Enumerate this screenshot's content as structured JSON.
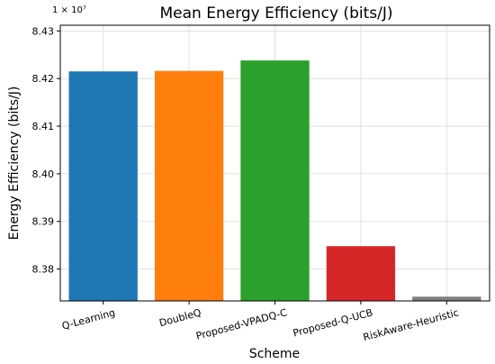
{
  "chart_data": {
    "type": "bar",
    "title": "Mean Energy Efficiency (bits/J)",
    "xlabel": "Scheme",
    "ylabel": "Energy Efficiency (bits/J)",
    "y_offset_label": "1 × 10⁷",
    "y_scale_factor": 10000000,
    "categories": [
      "Q-Learning",
      "DoubleQ",
      "Proposed-VPADQ-C",
      "Proposed-Q-UCB",
      "RiskAware-Heuristic"
    ],
    "values": [
      84215000,
      84216000,
      84238000,
      83848000,
      83742000
    ],
    "colors": [
      "#1f77b4",
      "#ff7f0e",
      "#2ca02c",
      "#d62728",
      "#7f7f7f"
    ],
    "ylim": [
      83733000,
      84312000
    ],
    "yticks": [
      83800000,
      83900000,
      84000000,
      84100000,
      84200000,
      84300000
    ],
    "ytick_labels": [
      "8.38",
      "8.39",
      "8.40",
      "8.41",
      "8.42",
      "8.43"
    ],
    "grid": true
  }
}
